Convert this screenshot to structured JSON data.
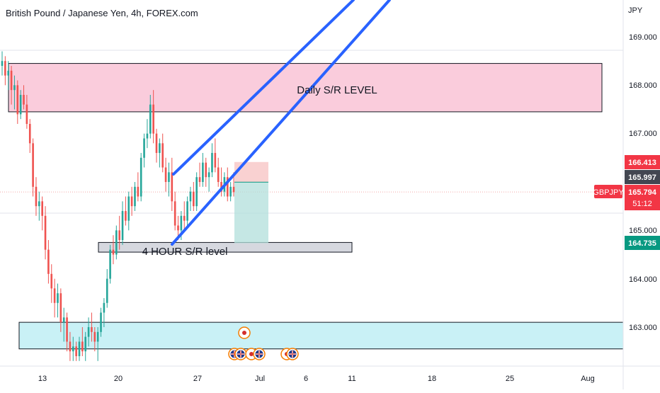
{
  "header": {
    "title": "British Pound / Japanese Yen, 4h, FOREX.com"
  },
  "colors": {
    "bull": "#26a69a",
    "bear": "#ef5350",
    "trendline": "#2962ff",
    "daily_zone": "#f8bbd0",
    "h4_zone": "#d1d4dc",
    "low_zone": "#b2ebf2",
    "sl_box": "#f7c6c5",
    "tp_box": "#b2dfdb"
  },
  "chart_data": {
    "type": "candlestick",
    "title": "British Pound / Japanese Yen, 4h, FOREX.com",
    "symbol": "GBPJPY",
    "y_unit": "JPY",
    "ylim": [
      162.2,
      169.7
    ],
    "y_ticks": [
      "169.000",
      "168.000",
      "167.000",
      "165.000",
      "164.000",
      "163.000"
    ],
    "x_ticks": [
      "13",
      "20",
      "27",
      "Jul",
      "6",
      "11",
      "18",
      "25",
      "Aug"
    ],
    "zones": [
      {
        "name": "daily-zone",
        "label": "Daily S/R LEVEL",
        "top": 168.45,
        "bottom": 167.45
      },
      {
        "name": "h4-zone",
        "label": "4 HOUR S/R level",
        "top": 164.75,
        "bottom": 164.55
      },
      {
        "name": "low-zone",
        "label": "",
        "top": 163.1,
        "bottom": 162.55
      }
    ],
    "price_labels": [
      {
        "name": "sl-price-label",
        "text": "166.413",
        "value": 166.413,
        "color": "#f23645"
      },
      {
        "name": "entry-price-label",
        "text": "165.997",
        "value": 165.997,
        "color": "#434651"
      },
      {
        "name": "last-price-label",
        "text": "165.794",
        "value": 165.794,
        "color": "#f23645",
        "countdown": "51:12",
        "symbol": "GBPJPY"
      },
      {
        "name": "tp-price-label",
        "text": "164.735",
        "value": 164.735,
        "color": "#089981"
      }
    ],
    "position": {
      "type": "short",
      "entry": 165.997,
      "stop": 166.413,
      "target": 164.735
    },
    "candles": [
      [
        168.4,
        168.7,
        168.2,
        168.5
      ],
      [
        168.5,
        168.6,
        168.0,
        168.2
      ],
      [
        168.2,
        168.5,
        167.9,
        168.3
      ],
      [
        168.3,
        168.4,
        167.6,
        167.9
      ],
      [
        167.9,
        168.2,
        167.5,
        168.0
      ],
      [
        168.0,
        168.1,
        167.2,
        167.4
      ],
      [
        167.4,
        167.9,
        167.3,
        167.8
      ],
      [
        167.8,
        168.0,
        167.5,
        167.6
      ],
      [
        167.6,
        167.8,
        167.1,
        167.2
      ],
      [
        167.2,
        167.3,
        166.6,
        166.8
      ],
      [
        166.8,
        166.9,
        165.7,
        165.9
      ],
      [
        165.9,
        166.1,
        165.3,
        165.5
      ],
      [
        165.5,
        165.8,
        165.2,
        165.6
      ],
      [
        165.6,
        165.7,
        165.0,
        165.3
      ],
      [
        165.3,
        165.5,
        164.4,
        164.6
      ],
      [
        164.6,
        164.8,
        163.9,
        164.1
      ],
      [
        164.1,
        164.3,
        163.5,
        163.8
      ],
      [
        163.8,
        164.0,
        163.2,
        163.5
      ],
      [
        163.5,
        163.9,
        163.2,
        163.7
      ],
      [
        163.7,
        163.8,
        162.9,
        163.1
      ],
      [
        163.1,
        163.4,
        162.7,
        163.2
      ],
      [
        163.2,
        163.3,
        162.5,
        162.7
      ],
      [
        162.7,
        162.9,
        162.3,
        162.5
      ],
      [
        162.5,
        162.8,
        162.3,
        162.6
      ],
      [
        162.6,
        162.7,
        162.3,
        162.4
      ],
      [
        162.4,
        162.8,
        162.3,
        162.7
      ],
      [
        162.7,
        163.0,
        162.4,
        162.5
      ],
      [
        162.5,
        162.9,
        162.3,
        162.8
      ],
      [
        162.8,
        163.2,
        162.6,
        163.0
      ],
      [
        163.0,
        163.3,
        162.7,
        162.9
      ],
      [
        162.9,
        163.0,
        162.5,
        162.7
      ],
      [
        162.7,
        163.0,
        162.3,
        162.9
      ],
      [
        162.9,
        163.4,
        162.8,
        163.3
      ],
      [
        163.3,
        163.6,
        163.0,
        163.5
      ],
      [
        163.5,
        164.2,
        163.4,
        164.0
      ],
      [
        164.0,
        164.7,
        163.9,
        164.6
      ],
      [
        164.6,
        164.9,
        164.3,
        164.5
      ],
      [
        164.5,
        165.1,
        164.4,
        165.0
      ],
      [
        165.0,
        165.3,
        164.6,
        164.8
      ],
      [
        164.8,
        165.6,
        164.7,
        165.4
      ],
      [
        165.4,
        165.7,
        165.1,
        165.2
      ],
      [
        165.2,
        165.8,
        165.0,
        165.7
      ],
      [
        165.7,
        165.9,
        165.3,
        165.5
      ],
      [
        165.5,
        166.0,
        165.4,
        165.9
      ],
      [
        165.9,
        166.2,
        165.6,
        165.7
      ],
      [
        165.7,
        166.6,
        165.6,
        166.5
      ],
      [
        166.5,
        167.0,
        166.3,
        166.9
      ],
      [
        166.9,
        167.3,
        166.7,
        167.0
      ],
      [
        167.0,
        167.8,
        166.9,
        167.6
      ],
      [
        167.6,
        167.9,
        166.8,
        167.0
      ],
      [
        167.0,
        167.1,
        166.4,
        166.6
      ],
      [
        166.6,
        166.9,
        166.3,
        166.8
      ],
      [
        166.8,
        167.0,
        166.2,
        166.3
      ],
      [
        166.3,
        166.5,
        165.8,
        166.0
      ],
      [
        166.0,
        166.4,
        165.7,
        166.2
      ],
      [
        166.2,
        166.5,
        165.4,
        165.6
      ],
      [
        165.6,
        165.8,
        165.0,
        165.1
      ],
      [
        165.1,
        165.3,
        164.8,
        165.0
      ],
      [
        165.0,
        165.4,
        164.8,
        165.3
      ],
      [
        165.3,
        165.6,
        165.0,
        165.2
      ],
      [
        165.2,
        165.7,
        165.1,
        165.6
      ],
      [
        165.6,
        165.9,
        165.4,
        165.8
      ],
      [
        165.8,
        166.0,
        165.4,
        165.5
      ],
      [
        165.5,
        166.2,
        165.4,
        166.1
      ],
      [
        166.1,
        166.4,
        165.9,
        166.0
      ],
      [
        166.0,
        166.6,
        165.9,
        166.4
      ],
      [
        166.4,
        166.5,
        165.9,
        166.1
      ],
      [
        166.1,
        166.3,
        165.8,
        166.2
      ],
      [
        166.2,
        166.8,
        166.1,
        166.6
      ],
      [
        166.6,
        166.9,
        166.2,
        166.3
      ],
      [
        166.3,
        166.5,
        165.9,
        166.0
      ],
      [
        166.0,
        166.3,
        165.7,
        165.8
      ],
      [
        165.8,
        166.2,
        165.7,
        166.1
      ],
      [
        166.1,
        166.3,
        165.6,
        165.7
      ],
      [
        165.7,
        166.0,
        165.6,
        165.9
      ],
      [
        165.9,
        166.2,
        165.7,
        165.79
      ]
    ]
  }
}
